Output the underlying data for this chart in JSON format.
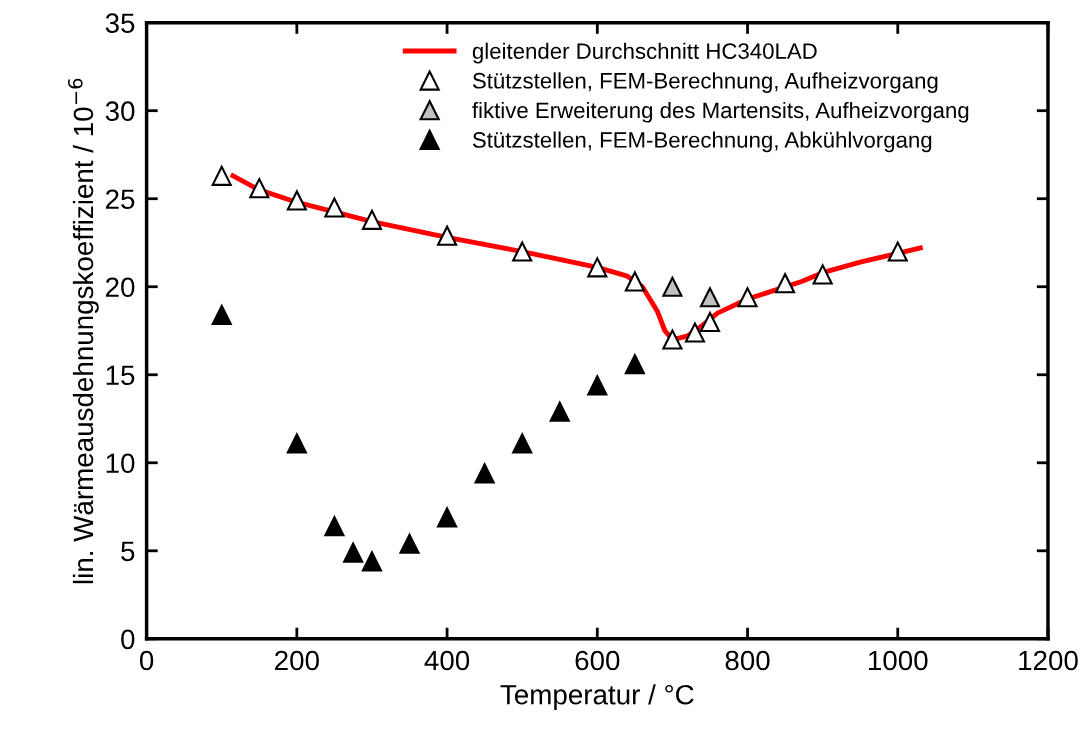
{
  "chart_data": {
    "type": "scatter",
    "xlabel": "Temperatur / °C",
    "ylabel": "lin. Wärmeausdehnungskoeffizient / 10$^{−6}$",
    "xlim": [
      0,
      1200
    ],
    "ylim": [
      0,
      35
    ],
    "xticks": [
      0,
      200,
      400,
      600,
      800,
      1000,
      1200
    ],
    "yticks": [
      0,
      5,
      10,
      15,
      20,
      25,
      30,
      35
    ],
    "grid": false,
    "legend": "top",
    "marker": "triangle",
    "series": [
      {
        "name": "gleitender Durchschnitt HC340LAD",
        "type": "line",
        "color": "#ff0000",
        "marker": "none",
        "line_style": "solid",
        "x": [
          115,
          150,
          200,
          228,
          300,
          400,
          500,
          600,
          640,
          660,
          670,
          680,
          690,
          700,
          720,
          740,
          760,
          800,
          872,
          900,
          950,
          1000,
          1030
        ],
        "values": [
          26.3,
          25.5,
          24.8,
          24.5,
          23.7,
          22.8,
          22.0,
          21.1,
          20.6,
          20.0,
          19.3,
          18.6,
          17.5,
          17.0,
          17.2,
          17.8,
          18.5,
          19.3,
          20.3,
          20.8,
          21.4,
          21.9,
          22.2
        ]
      },
      {
        "name": "Stützstellen, FEM-Berechnung, Aufheizvorgang",
        "color": "#ffffff",
        "x": [
          100,
          150,
          200,
          250,
          300,
          400,
          500,
          600,
          650,
          700,
          730,
          750,
          800,
          850,
          900,
          1000
        ],
        "values": [
          26.3,
          25.6,
          24.9,
          24.5,
          23.8,
          22.9,
          22.0,
          21.1,
          20.3,
          17.0,
          17.4,
          18.0,
          19.4,
          20.2,
          20.7,
          22.0
        ]
      },
      {
        "name": "fiktive Erweiterung des Martensits, Aufheizvorgang",
        "color": "#c0c0c0",
        "x": [
          700,
          750
        ],
        "values": [
          20.0,
          19.4
        ]
      },
      {
        "name": "Stützstellen, FEM-Berechnung, Abkühlvorgang",
        "color": "#000000",
        "x": [
          100,
          200,
          250,
          275,
          300,
          350,
          400,
          450,
          500,
          550,
          600,
          650
        ],
        "values": [
          18.4,
          11.1,
          6.4,
          4.9,
          4.4,
          5.4,
          6.9,
          9.4,
          11.1,
          12.9,
          14.4,
          15.6
        ]
      }
    ]
  }
}
